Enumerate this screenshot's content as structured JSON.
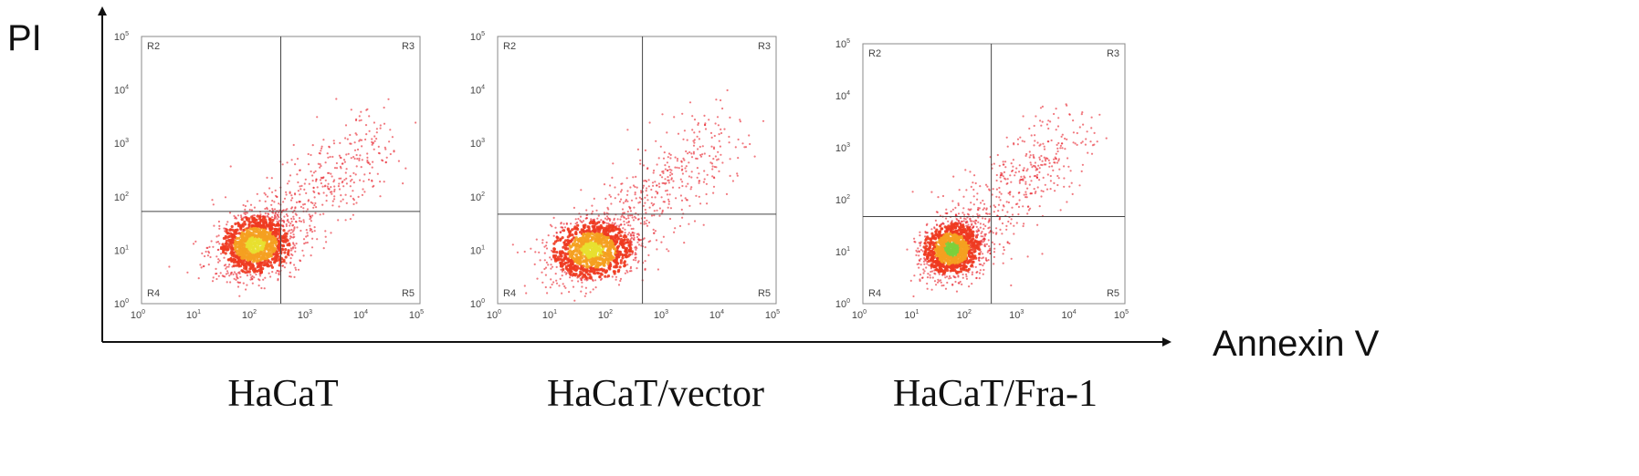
{
  "axes": {
    "y_label": "PI",
    "x_label": "Annexin V"
  },
  "tick_base": "10",
  "tick_exponents": [
    "0",
    "1",
    "2",
    "3",
    "4",
    "5"
  ],
  "panels": [
    {
      "label": "HaCaT",
      "regions": [
        "R2",
        "R3",
        "R4",
        "R5"
      ]
    },
    {
      "label": "HaCaT/vector",
      "regions": [
        "R2",
        "R3",
        "R4",
        "R5"
      ]
    },
    {
      "label": "HaCaT/Fra-1",
      "regions": [
        "R2",
        "R3",
        "R4",
        "R5"
      ]
    }
  ]
}
